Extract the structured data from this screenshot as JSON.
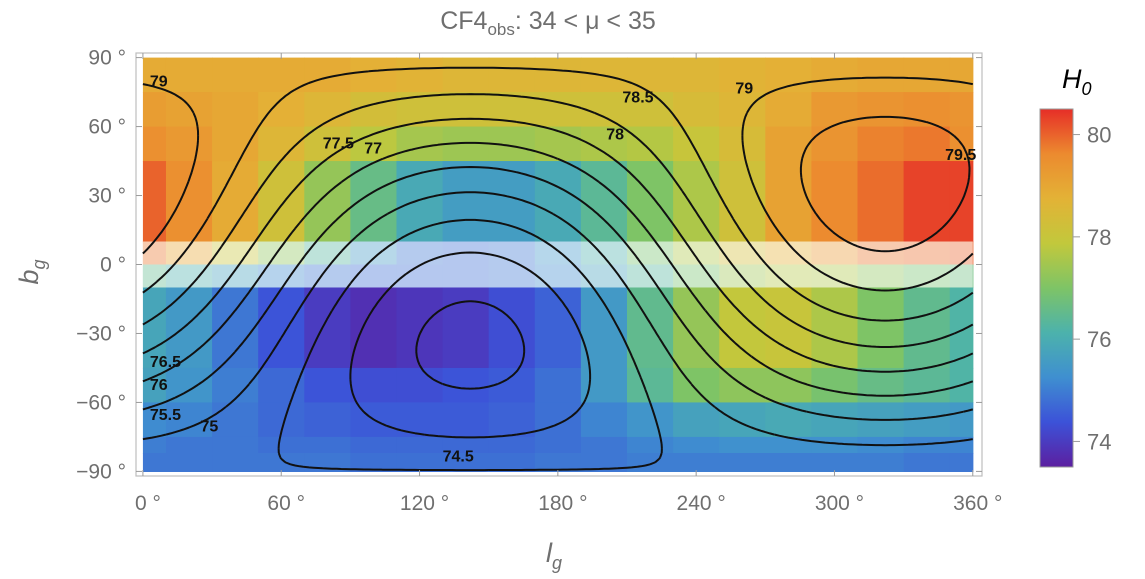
{
  "chart_data": {
    "type": "heatmap",
    "title_main": "CF4",
    "title_sub": "obs",
    "title_rest": ": 34  <  μ  <  35",
    "xlabel_main": "l",
    "xlabel_sub": "g",
    "ylabel_main": "b",
    "ylabel_sub": "g",
    "xlim": [
      -3,
      364
    ],
    "ylim": [
      -92,
      92
    ],
    "x_ticks": [
      {
        "value": 0,
        "label": "0 °"
      },
      {
        "value": 60,
        "label": "60 °"
      },
      {
        "value": 120,
        "label": "120 °"
      },
      {
        "value": 180,
        "label": "180 °"
      },
      {
        "value": 240,
        "label": "240 °"
      },
      {
        "value": 300,
        "label": "300 °"
      },
      {
        "value": 360,
        "label": "360 °"
      }
    ],
    "y_ticks": [
      {
        "value": 90,
        "label": "90 °"
      },
      {
        "value": 60,
        "label": "60 °"
      },
      {
        "value": 30,
        "label": "30 °"
      },
      {
        "value": 0,
        "label": "0 °"
      },
      {
        "value": -30,
        "label": "−30 °"
      },
      {
        "value": -60,
        "label": "−60 °"
      },
      {
        "value": -90,
        "label": "−90 °"
      }
    ],
    "b_bands": [
      [
        75,
        90
      ],
      [
        60,
        75
      ],
      [
        45,
        60
      ],
      [
        10,
        45
      ],
      [
        0,
        10
      ],
      [
        -10,
        0
      ],
      [
        -45,
        -10
      ],
      [
        -60,
        -45
      ],
      [
        -75,
        -60
      ],
      [
        -82,
        -75
      ],
      [
        -90,
        -82
      ]
    ],
    "l_bins": [
      0,
      10,
      30,
      50,
      70,
      90,
      110,
      130,
      150,
      170,
      190,
      210,
      230,
      250,
      270,
      290,
      310,
      330,
      350,
      360
    ],
    "h0_grid": [
      [
        78.9,
        78.9,
        78.9,
        78.9,
        78.9,
        78.8,
        78.7,
        78.6,
        78.6,
        78.6,
        78.6,
        78.6,
        78.6,
        78.7,
        78.8,
        78.9,
        79.0,
        79.0,
        79.0
      ],
      [
        79.2,
        79.1,
        79.0,
        78.8,
        78.6,
        78.3,
        78.2,
        78.2,
        78.2,
        78.2,
        78.2,
        78.2,
        78.4,
        78.6,
        78.9,
        79.3,
        79.4,
        79.5,
        79.4
      ],
      [
        79.5,
        79.3,
        79.0,
        78.6,
        78.2,
        77.8,
        77.5,
        77.4,
        77.4,
        77.5,
        77.6,
        77.7,
        78.0,
        78.4,
        79.1,
        79.4,
        79.7,
        79.8,
        79.5
      ],
      [
        80.0,
        79.5,
        78.9,
        78.2,
        77.3,
        76.6,
        75.9,
        75.6,
        75.6,
        75.9,
        76.4,
        77.0,
        77.6,
        78.2,
        79.1,
        79.6,
        79.9,
        80.3,
        80.3
      ],
      [
        79.8,
        79.0,
        78.0,
        77.2,
        76.3,
        75.5,
        74.9,
        74.8,
        74.9,
        75.4,
        76.1,
        76.9,
        77.6,
        78.3,
        78.8,
        79.3,
        79.8,
        79.9,
        80.0
      ],
      [
        76.5,
        76.1,
        75.7,
        75.2,
        74.9,
        74.8,
        74.8,
        74.8,
        74.9,
        75.2,
        75.7,
        76.3,
        76.9,
        77.4,
        77.7,
        77.6,
        77.2,
        76.9,
        76.7
      ],
      [
        75.8,
        75.5,
        74.9,
        74.4,
        74.0,
        73.8,
        73.9,
        74.0,
        74.3,
        74.6,
        75.5,
        76.5,
        77.3,
        77.9,
        78.0,
        77.6,
        77.0,
        76.5,
        76.2
      ],
      [
        75.7,
        75.4,
        75.0,
        74.7,
        74.4,
        74.3,
        74.3,
        74.4,
        74.5,
        74.8,
        75.5,
        76.4,
        77.0,
        77.2,
        77.2,
        76.9,
        76.6,
        76.4,
        76.2
      ],
      [
        75.2,
        75.1,
        74.9,
        74.7,
        74.6,
        74.5,
        74.5,
        74.5,
        74.6,
        74.8,
        75.1,
        75.4,
        75.7,
        75.8,
        75.9,
        75.8,
        75.7,
        75.6,
        75.5
      ],
      [
        75.0,
        74.9,
        74.9,
        74.8,
        74.8,
        74.7,
        74.7,
        74.7,
        74.7,
        74.8,
        74.9,
        75.1,
        75.2,
        75.3,
        75.3,
        75.3,
        75.2,
        75.1,
        75.1
      ],
      [
        74.9,
        74.9,
        74.9,
        74.9,
        74.9,
        74.8,
        74.8,
        74.8,
        74.8,
        74.9,
        74.9,
        75.0,
        75.0,
        75.0,
        75.0,
        75.0,
        75.0,
        74.9,
        74.9
      ]
    ],
    "masked_band": "-10 < b < 10 (zone of avoidance, faded)",
    "contour_levels": [
      74.5,
      75,
      75.5,
      76,
      76.5,
      77,
      77.5,
      78,
      78.5,
      79,
      79.5
    ],
    "contour_labels": [
      {
        "text": "79",
        "l": 3,
        "b": 80
      },
      {
        "text": "78.5",
        "l": 208,
        "b": 73
      },
      {
        "text": "79",
        "l": 257,
        "b": 77
      },
      {
        "text": "78",
        "l": 201,
        "b": 57
      },
      {
        "text": "77.5",
        "l": 78,
        "b": 53
      },
      {
        "text": "77",
        "l": 96,
        "b": 51
      },
      {
        "text": "79.5",
        "l": 348,
        "b": 48
      },
      {
        "text": "76.5",
        "l": 3,
        "b": -42
      },
      {
        "text": "76",
        "l": 3,
        "b": -52
      },
      {
        "text": "75.5",
        "l": 3,
        "b": -65
      },
      {
        "text": "75",
        "l": 25,
        "b": -70
      },
      {
        "text": "74.5",
        "l": 130,
        "b": -83
      }
    ],
    "colorbar": {
      "title_main": "H",
      "title_sub": "0",
      "range": [
        73.5,
        80.5
      ],
      "ticks": [
        {
          "value": 80,
          "label": "80"
        },
        {
          "value": 78,
          "label": "78"
        },
        {
          "value": 76,
          "label": "76"
        },
        {
          "value": 74,
          "label": "74"
        }
      ],
      "colors": [
        "#5c1fa0",
        "#3c52d8",
        "#3f8fd0",
        "#4cb2ac",
        "#7ec466",
        "#c2c83c",
        "#e3b236",
        "#ec8a2f",
        "#e62e27"
      ]
    }
  }
}
